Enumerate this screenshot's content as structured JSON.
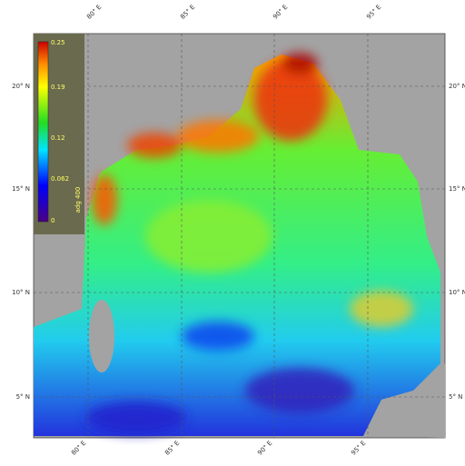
{
  "map": {
    "lon_labels": [
      "80° E",
      "85° E",
      "90° E",
      "95° E"
    ],
    "lat_labels": [
      "20° N",
      "15° N",
      "10° N",
      "5° N"
    ],
    "colorbar": {
      "ticks": [
        "0.25",
        "0.19",
        "0.12",
        "0.062",
        "0"
      ],
      "label": "adg 400"
    }
  }
}
